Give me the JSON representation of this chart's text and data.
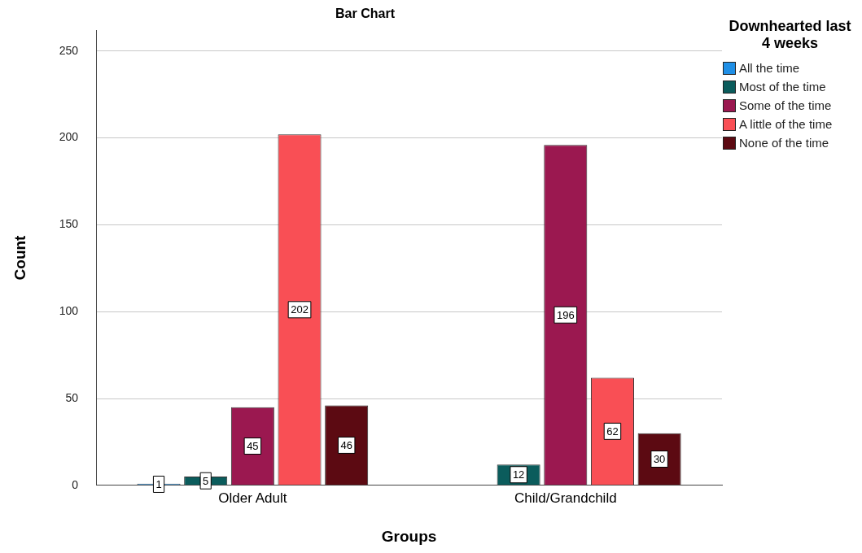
{
  "chart_data": {
    "type": "bar",
    "title": "Bar Chart",
    "xlabel": "Groups",
    "ylabel": "Count",
    "legend_title": "Downhearted last 4 weeks",
    "categories": [
      "Older Adult",
      "Child/Grandchild"
    ],
    "series": [
      {
        "name": "All the time",
        "color": "#1f8fe6",
        "values": [
          1,
          null
        ]
      },
      {
        "name": "Most of the time",
        "color": "#0b5c5c",
        "values": [
          5,
          12
        ]
      },
      {
        "name": "Some of the time",
        "color": "#9b1850",
        "values": [
          45,
          196
        ]
      },
      {
        "name": "A little of the time",
        "color": "#f94f55",
        "values": [
          202,
          62
        ]
      },
      {
        "name": "None of the time",
        "color": "#5c0a12",
        "values": [
          46,
          30
        ]
      }
    ],
    "ylim": [
      0,
      262
    ],
    "yticks": [
      0,
      50,
      100,
      150,
      200,
      250
    ],
    "grid": "y",
    "legend": "top right",
    "data_labels": true
  }
}
